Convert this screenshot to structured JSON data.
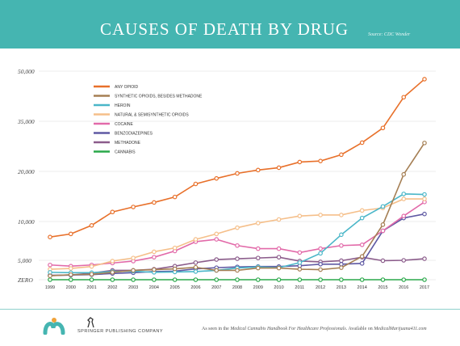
{
  "header": {
    "title": "CAUSES OF DEATH BY DRUG",
    "source": "Source: CDC Wonder"
  },
  "footer": {
    "logo_name": "medical-marijuana-logo",
    "springer_label": "SPRINGER PUBLISHING COMPANY",
    "note_prefix": "As seen in the ",
    "note_book": "Medical Cannabis Handbook For Healthcare Professionals",
    "note_mid": ". Available on ",
    "note_site": "MedicalMarijuana411.com"
  },
  "chart_data": {
    "type": "line",
    "x": [
      "1999",
      "2000",
      "2001",
      "2002",
      "2003",
      "2004",
      "2005",
      "2006",
      "2007",
      "2008",
      "2009",
      "2010",
      "2011",
      "2012",
      "2013",
      "2014",
      "2015",
      "2016",
      "2017"
    ],
    "y_ticks": [
      {
        "value": 0,
        "label": "ZERO"
      },
      {
        "value": 5000,
        "label": "5,000"
      },
      {
        "value": 10000,
        "label": "10,000"
      },
      {
        "value": 20000,
        "label": "20,000"
      },
      {
        "value": 35000,
        "label": "35,000"
      },
      {
        "value": 50000,
        "label": "50,000"
      }
    ],
    "y_scale": "nonlinear-piecewise",
    "ylim": [
      0,
      50000
    ],
    "grid": "horizontal",
    "legend_position": "top-left",
    "series": [
      {
        "name": "ANY OPIOID",
        "color": "#e8702a",
        "values": [
          8000,
          8400,
          9500,
          11900,
          12900,
          13800,
          14900,
          17500,
          18600,
          19600,
          20400,
          21100,
          22800,
          23100,
          25000,
          28600,
          33000,
          42200,
          47600
        ]
      },
      {
        "name": "SYNTHETIC OPIOIDS, BESIDES METHADONE",
        "color": "#a57f54",
        "values": [
          1000,
          1300,
          1400,
          1900,
          2400,
          2600,
          2800,
          3200,
          2400,
          2400,
          3000,
          3000,
          2700,
          2600,
          3100,
          5500,
          9600,
          19400,
          28500
        ]
      },
      {
        "name": "HEROIN",
        "color": "#4ab6c8",
        "values": [
          1900,
          1800,
          1800,
          2100,
          2200,
          1900,
          2000,
          2100,
          2400,
          3000,
          3300,
          3100,
          4400,
          5900,
          8300,
          10700,
          13000,
          15500,
          15400
        ]
      },
      {
        "name": "NATURAL & SEMISYNTHETIC OPIOIDS",
        "color": "#f5bf8a",
        "values": [
          2700,
          2900,
          3400,
          4800,
          5300,
          6100,
          6600,
          7700,
          8400,
          9200,
          9800,
          10400,
          11100,
          11300,
          11300,
          12200,
          12700,
          14500,
          14500
        ]
      },
      {
        "name": "COCAINE",
        "color": "#e26aa9",
        "values": [
          3800,
          3500,
          3800,
          4300,
          4800,
          5400,
          6200,
          7400,
          7700,
          6900,
          6500,
          6500,
          6000,
          6500,
          6900,
          7000,
          8800,
          11100,
          13900
        ]
      },
      {
        "name": "BENZODIAZEPINES",
        "color": "#5f59a3",
        "values": [
          1100,
          1200,
          1300,
          1600,
          1800,
          2100,
          2200,
          2800,
          3100,
          3300,
          3400,
          3400,
          3600,
          4000,
          4000,
          4200,
          8800,
          10700,
          11500
        ]
      },
      {
        "name": "METHADONE",
        "color": "#8b5c8b",
        "values": [
          1100,
          1200,
          1700,
          2400,
          2400,
          2700,
          3500,
          4400,
          5100,
          5200,
          5300,
          5400,
          4800,
          4600,
          4900,
          5400,
          4900,
          5000,
          5200
        ]
      },
      {
        "name": "CANNABIS",
        "color": "#2aa84a",
        "values": [
          0,
          0,
          0,
          0,
          0,
          0,
          0,
          0,
          0,
          0,
          0,
          0,
          0,
          0,
          0,
          0,
          0,
          0,
          0
        ]
      }
    ]
  }
}
